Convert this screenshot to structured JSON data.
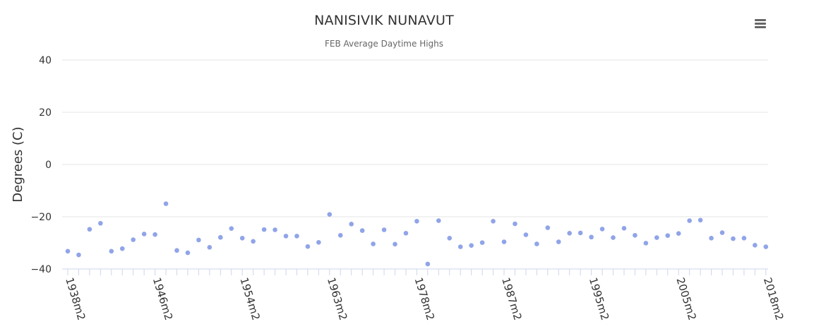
{
  "menu_icon": "hamburger-menu-icon",
  "chart_data": {
    "type": "scatter",
    "title": "NANISIVIK NUNAVUT",
    "subtitle": "FEB Average Daytime Highs",
    "ylabel": "Degrees (C)",
    "xlabel": "",
    "ylim": [
      -40,
      40
    ],
    "yticks": [
      "40",
      "20",
      "0",
      "−20",
      "−40"
    ],
    "ytick_values": [
      40,
      20,
      0,
      -20,
      -40
    ],
    "xtick_labels": [
      "1938m2",
      "1946m2",
      "1954m2",
      "1963m2",
      "1978m2",
      "1987m2",
      "1995m2",
      "2005m2",
      "2018m2"
    ],
    "xtick_positions": [
      0,
      8,
      16,
      24,
      32,
      40,
      48,
      56,
      64
    ],
    "grid": true,
    "legend": "none",
    "color": "#90a4e8",
    "values": [
      -33.2,
      -34.6,
      -24.8,
      -22.5,
      -33.2,
      -32.2,
      -28.8,
      -26.6,
      -26.8,
      -15.0,
      -32.9,
      -33.8,
      -28.9,
      -31.7,
      -27.9,
      -24.5,
      -28.2,
      -29.4,
      -24.9,
      -25.0,
      -27.4,
      -27.4,
      -31.4,
      -29.8,
      -19.1,
      -27.1,
      -22.8,
      -25.3,
      -30.4,
      -25.0,
      -30.5,
      -26.3,
      -21.7,
      -38.1,
      -21.5,
      -28.2,
      -31.5,
      -31.0,
      -29.9,
      -21.7,
      -29.6,
      -22.7,
      -26.9,
      -30.4,
      -24.2,
      -29.6,
      -26.3,
      -26.2,
      -27.8,
      -24.7,
      -28.0,
      -24.4,
      -27.1,
      -30.1,
      -28.0,
      -27.2,
      -26.4,
      -21.5,
      -21.3,
      -28.2,
      -26.1,
      -28.4,
      -28.2,
      -30.9,
      -31.5
    ]
  }
}
